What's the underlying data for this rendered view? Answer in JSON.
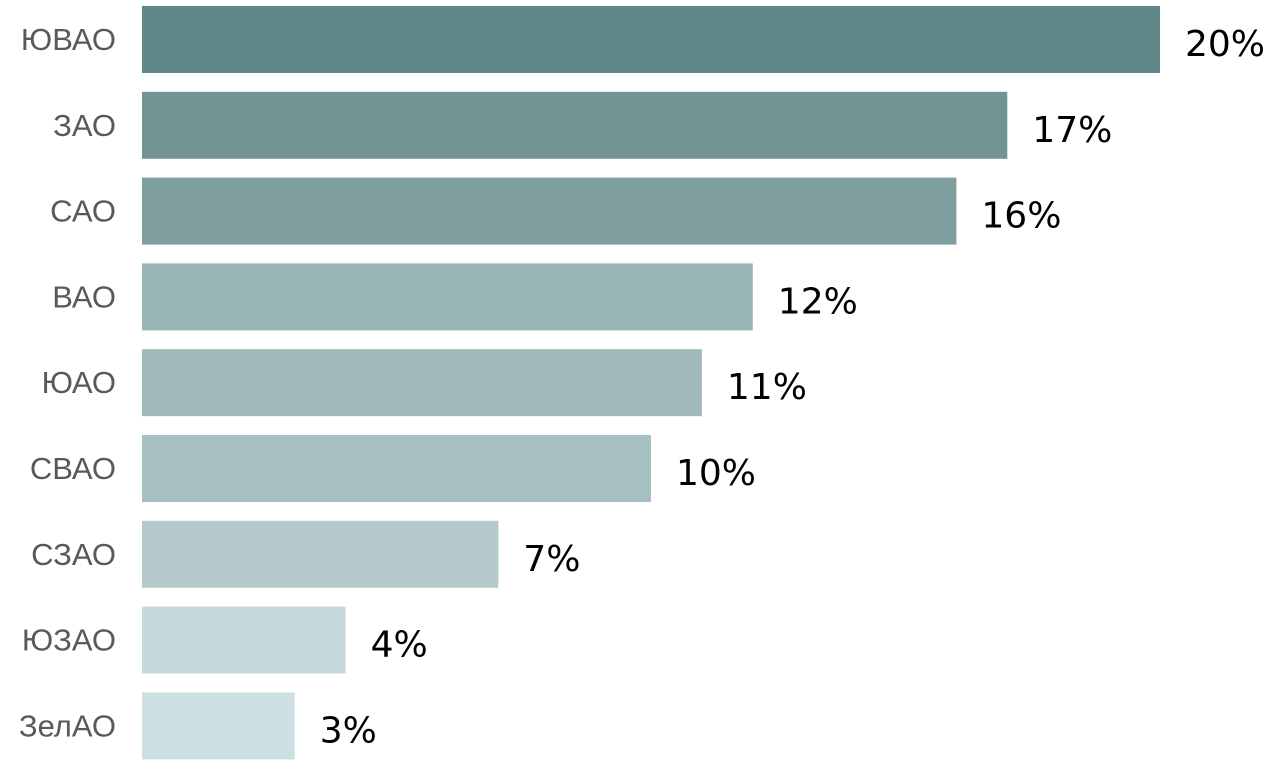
{
  "chart_data": {
    "type": "bar",
    "orientation": "horizontal",
    "categories": [
      "ЮВАО",
      "ЗАО",
      "САО",
      "ВАО",
      "ЮАО",
      "СВАО",
      "СЗАО",
      "ЮЗАО",
      "ЗелАО"
    ],
    "values": [
      20,
      17,
      16,
      12,
      11,
      10,
      7,
      4,
      3
    ],
    "value_labels": [
      "20%",
      "17%",
      "16%",
      "12%",
      "11%",
      "10%",
      "7%",
      "4%",
      "3%"
    ],
    "bar_colors": [
      "#608787",
      "#739494",
      "#7f9f9f",
      "#99b5b6",
      "#a1b9ba",
      "#a6bfc0",
      "#b3c9cb",
      "#c6dadc",
      "#cedfe1"
    ],
    "xlim": [
      0,
      20
    ],
    "grid": false,
    "legend": "none"
  }
}
